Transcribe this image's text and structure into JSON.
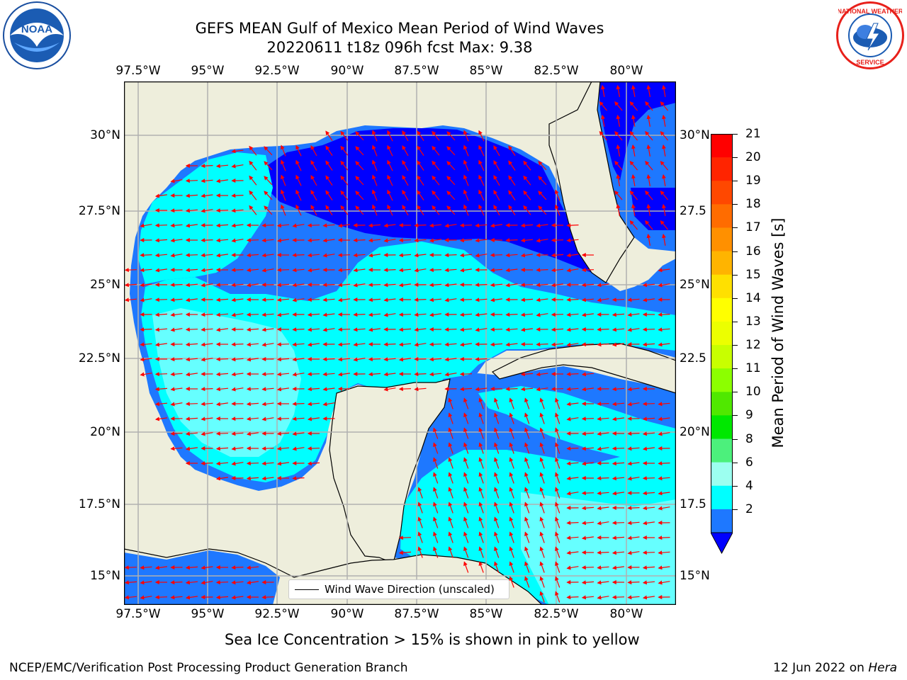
{
  "header": {
    "title_line1": "GEFS MEAN Gulf of Mexico Mean Period of Wind Waves",
    "title_line2": "20220611 t18z 096h fcst   Max: 9.38"
  },
  "logos": {
    "left": {
      "icon": "noaa-logo",
      "text": "NOAA"
    },
    "right": {
      "icon": "nws-logo",
      "text": "NATIONAL WEATHER SERVICE"
    }
  },
  "map": {
    "lon_labels": [
      "97.5°W",
      "95°W",
      "92.5°W",
      "90°W",
      "87.5°W",
      "85°W",
      "82.5°W",
      "80°W"
    ],
    "lat_labels_left": [
      "30°N",
      "27.5°N",
      "25°N",
      "22.5°N",
      "20°N",
      "17.5°N",
      "15°N"
    ],
    "lat_labels_right": [
      "30°N",
      "27.5",
      "25°N",
      "22.5",
      "20°N",
      "17.5",
      "15°N"
    ],
    "legend_label": "Wind Wave Direction (unscaled)",
    "colors": {
      "land": "#eeeedc",
      "deep_blue": "#0000ff",
      "blue": "#1e78ff",
      "cyan": "#00ffff",
      "light_cyan": "#66ffff",
      "arrows": "#ff0000"
    }
  },
  "colorbar": {
    "label": "Mean Period of Wind Waves [s]",
    "ticks": [
      "21",
      "20",
      "19",
      "18",
      "17",
      "16",
      "15",
      "14",
      "13",
      "12",
      "11",
      "10",
      "9",
      "8",
      "6",
      "4",
      "2"
    ],
    "colors": [
      "#ff0000",
      "#ff2400",
      "#ff4800",
      "#ff6c00",
      "#ff9000",
      "#ffb400",
      "#ffe000",
      "#ffff00",
      "#ecff00",
      "#c8ff00",
      "#8cff00",
      "#50e800",
      "#00e800",
      "#4cf07c",
      "#9cfff0",
      "#00ffff",
      "#1e78ff"
    ]
  },
  "note": "Sea Ice Concentration > 15% is shown in pink to yellow",
  "footer": {
    "left": "NCEP/EMC/Verification Post Processing Product Generation Branch",
    "date": "12 Jun 2022 on ",
    "machine": "Hera"
  }
}
